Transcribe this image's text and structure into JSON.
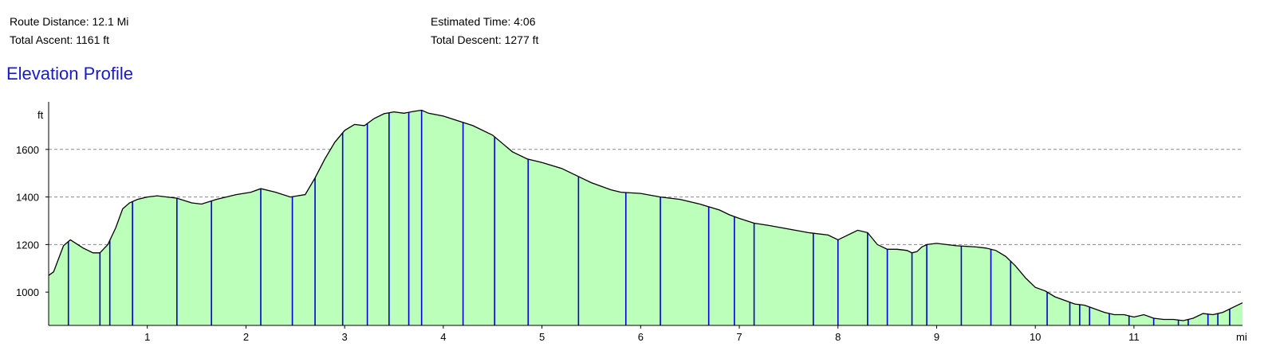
{
  "summary": {
    "route_distance": "Route Distance: 12.1 Mi",
    "total_ascent": "Total Ascent: 1161 ft",
    "estimated_time": "Estimated Time: 4:06",
    "total_descent": "Total Descent: 1277 ft"
  },
  "title": "Elevation Profile",
  "chart_data": {
    "type": "area",
    "title": "Elevation Profile",
    "xlabel": "mi",
    "ylabel": "ft",
    "xlim": [
      0,
      12.1
    ],
    "ylim": [
      860,
      1800
    ],
    "x_ticks": [
      1,
      2,
      3,
      4,
      5,
      6,
      7,
      8,
      9,
      10,
      11
    ],
    "x_tick_labels": [
      "1",
      "2",
      "3",
      "4",
      "5",
      "6",
      "7",
      "8",
      "9",
      "10",
      "11"
    ],
    "y_ticks": [
      1000,
      1200,
      1400,
      1600
    ],
    "y_tick_labels": [
      "1000",
      "1200",
      "1400",
      "1600"
    ],
    "grid": "horizontal dashed",
    "colors": {
      "fill": "#bbffbb",
      "line": "#000000",
      "markers": "#0000cc",
      "grid": "#888888"
    },
    "series": [
      {
        "x": [
          0,
          0.05,
          0.15,
          0.22,
          0.35,
          0.45,
          0.52,
          0.6,
          0.68,
          0.75,
          0.82,
          0.9,
          1.0,
          1.1,
          1.2,
          1.3,
          1.45,
          1.55,
          1.7,
          1.9,
          2.05,
          2.15,
          2.3,
          2.45,
          2.6,
          2.7,
          2.8,
          2.9,
          3.0,
          3.1,
          3.2,
          3.3,
          3.4,
          3.5,
          3.6,
          3.7,
          3.78,
          3.85,
          4.0,
          4.15,
          4.3,
          4.5,
          4.7,
          4.85,
          5.0,
          5.2,
          5.4,
          5.5,
          5.7,
          5.8,
          6.0,
          6.2,
          6.4,
          6.6,
          6.8,
          6.9,
          7.0,
          7.15,
          7.3,
          7.5,
          7.7,
          7.9,
          8.0,
          8.1,
          8.2,
          8.3,
          8.4,
          8.5,
          8.6,
          8.7,
          8.75,
          8.8,
          8.85,
          8.9,
          9.0,
          9.1,
          9.2,
          9.4,
          9.5,
          9.6,
          9.7,
          9.8,
          9.9,
          10.0,
          10.1,
          10.2,
          10.3,
          10.4,
          10.5,
          10.6,
          10.7,
          10.8,
          10.9,
          11.0,
          11.1,
          11.2,
          11.3,
          11.4,
          11.5,
          11.6,
          11.7,
          11.8,
          11.9,
          12.0,
          12.1
        ],
        "values": [
          1070,
          1085,
          1195,
          1220,
          1185,
          1165,
          1165,
          1200,
          1270,
          1350,
          1375,
          1390,
          1400,
          1405,
          1400,
          1395,
          1375,
          1370,
          1390,
          1410,
          1420,
          1435,
          1420,
          1400,
          1410,
          1480,
          1560,
          1630,
          1680,
          1705,
          1700,
          1730,
          1750,
          1758,
          1752,
          1760,
          1765,
          1752,
          1740,
          1720,
          1700,
          1660,
          1590,
          1560,
          1545,
          1520,
          1480,
          1460,
          1430,
          1420,
          1415,
          1400,
          1390,
          1370,
          1345,
          1325,
          1310,
          1290,
          1280,
          1265,
          1250,
          1240,
          1220,
          1240,
          1260,
          1250,
          1200,
          1180,
          1180,
          1175,
          1165,
          1170,
          1190,
          1200,
          1205,
          1200,
          1195,
          1190,
          1185,
          1175,
          1150,
          1110,
          1060,
          1020,
          1005,
          980,
          965,
          950,
          945,
          930,
          915,
          905,
          905,
          895,
          905,
          890,
          885,
          885,
          880,
          890,
          910,
          905,
          915,
          935,
          955
        ]
      }
    ],
    "marker_x": [
      0.2,
      0.52,
      0.62,
      0.85,
      1.3,
      1.65,
      2.15,
      2.47,
      2.7,
      2.98,
      3.23,
      3.45,
      3.65,
      3.78,
      4.2,
      4.52,
      4.86,
      5.37,
      5.85,
      6.2,
      6.69,
      6.95,
      7.15,
      7.75,
      8.0,
      8.3,
      8.5,
      8.75,
      8.9,
      9.25,
      9.55,
      9.75,
      10.12,
      10.35,
      10.45,
      10.55,
      10.75,
      10.95,
      11.2,
      11.45,
      11.55,
      11.75,
      11.85,
      11.97
    ]
  }
}
